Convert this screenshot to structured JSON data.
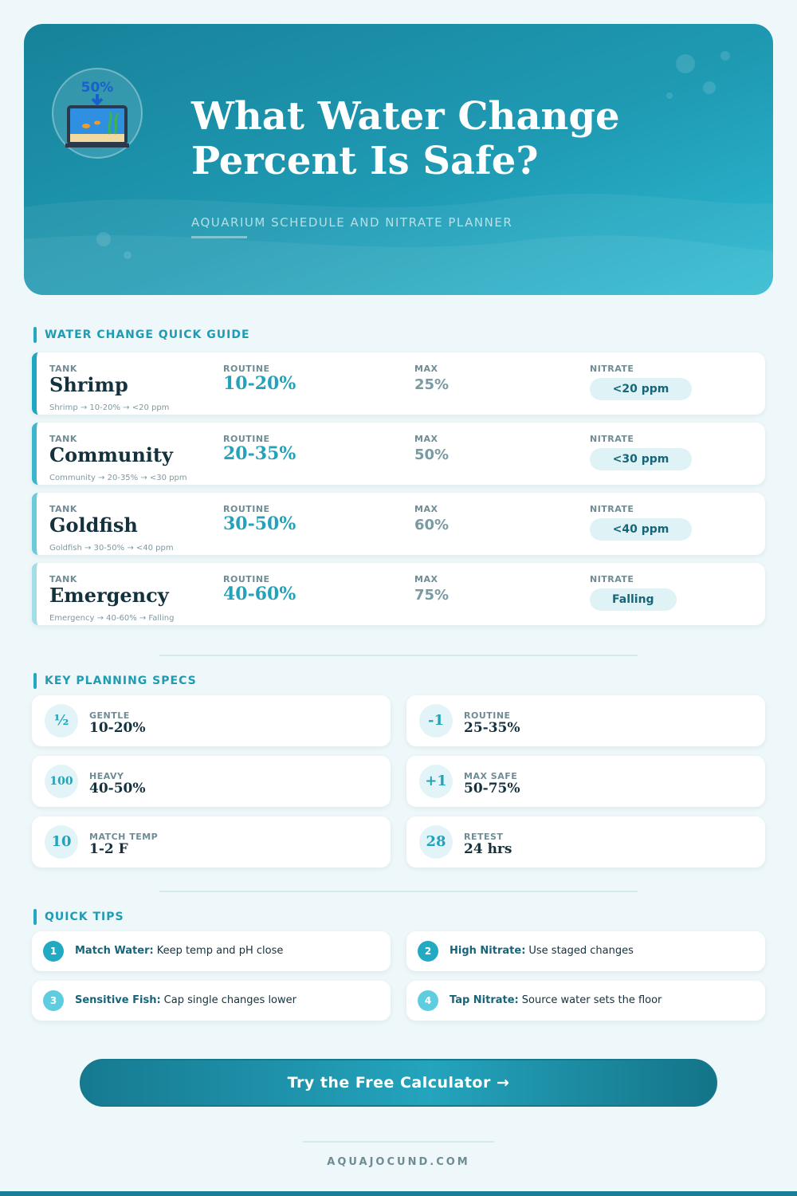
{
  "header": {
    "icon_label": "50%",
    "title": "What Water Change Percent Is Safe?",
    "subtitle": "AQUARIUM SCHEDULE AND NITRATE PLANNER"
  },
  "guide": {
    "heading": "WATER CHANGE QUICK GUIDE",
    "labels": {
      "tank": "TANK",
      "routine": "ROUTINE",
      "max": "MAX",
      "nitrate": "NITRATE"
    },
    "rows": [
      {
        "tank": "Shrimp",
        "routine": "10-20%",
        "max": "25%",
        "nitrate": "<20 ppm",
        "summary": "Shrimp → 10-20% → <20 ppm"
      },
      {
        "tank": "Community",
        "routine": "20-35%",
        "max": "50%",
        "nitrate": "<30 ppm",
        "summary": "Community → 20-35% → <30 ppm"
      },
      {
        "tank": "Goldfish",
        "routine": "30-50%",
        "max": "60%",
        "nitrate": "<40 ppm",
        "summary": "Goldfish → 30-50% → <40 ppm"
      },
      {
        "tank": "Emergency",
        "routine": "40-60%",
        "max": "75%",
        "nitrate": "Falling",
        "summary": "Emergency → 40-60% → Falling"
      }
    ]
  },
  "specs": {
    "heading": "KEY PLANNING SPECS",
    "items": [
      {
        "icon": "½",
        "label": "GENTLE",
        "value": "10-20%"
      },
      {
        "icon": "-1",
        "label": "ROUTINE",
        "value": "25-35%"
      },
      {
        "icon": "100",
        "label": "HEAVY",
        "value": "40-50%"
      },
      {
        "icon": "+1",
        "label": "MAX SAFE",
        "value": "50-75%"
      },
      {
        "icon": "10",
        "label": "MATCH TEMP",
        "value": "1-2 F"
      },
      {
        "icon": "28",
        "label": "RETEST",
        "value": "24 hrs"
      }
    ]
  },
  "tips": {
    "heading": "QUICK TIPS",
    "items": [
      {
        "number": "1",
        "title": "Match Water:",
        "text": "Keep temp and pH close"
      },
      {
        "number": "2",
        "title": "High Nitrate:",
        "text": "Use staged changes"
      },
      {
        "number": "3",
        "title": "Sensitive Fish:",
        "text": "Cap single changes lower"
      },
      {
        "number": "4",
        "title": "Tap Nitrate:",
        "text": "Source water sets the floor"
      }
    ]
  },
  "cta": "Try the Free Calculator →",
  "footer": "AQUAJOCUND.COM"
}
